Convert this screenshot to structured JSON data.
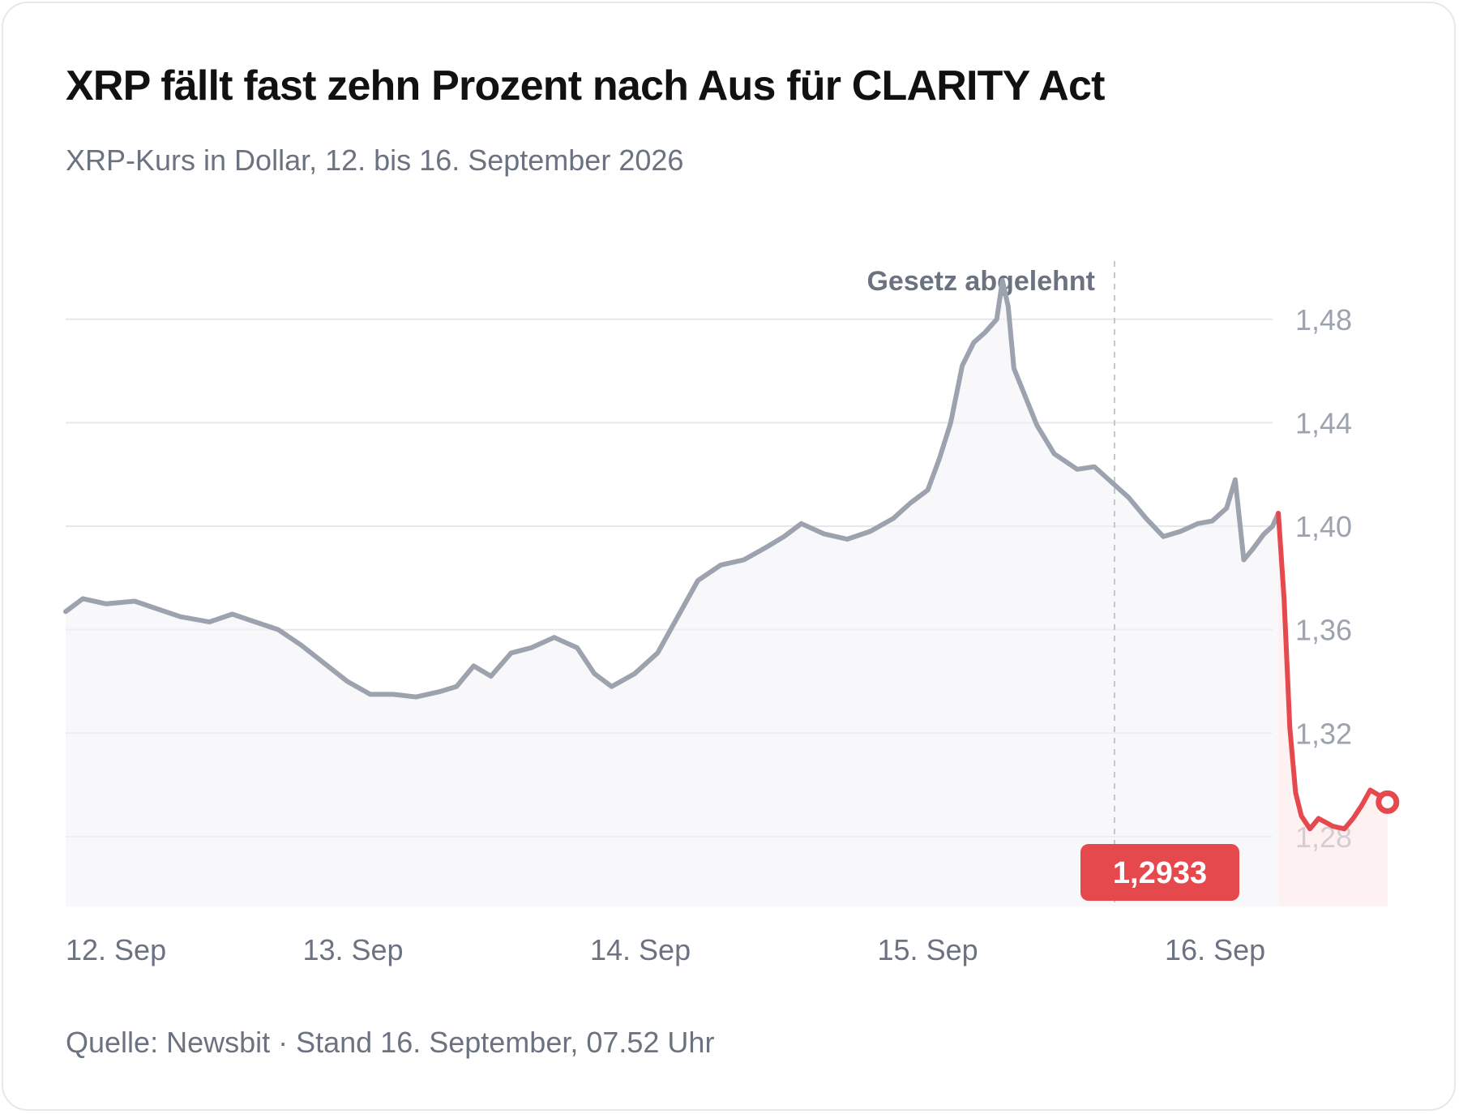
{
  "header": {
    "title": "XRP fällt fast zehn Prozent nach Aus für CLARITY Act",
    "subtitle": "XRP-Kurs in Dollar, 12. bis 16. September 2026"
  },
  "footer": {
    "source": "Quelle: Newsbit · Stand 16. September, 07.52 Uhr"
  },
  "colors": {
    "before_line": "#9ca3af",
    "after_line": "#e5484d",
    "grid": "#e5e7eb",
    "annotation": "#6b7280",
    "tick": "#9ca3af",
    "x_tick": "#6b7280"
  },
  "chart_data": {
    "type": "line",
    "title": "XRP fällt fast zehn Prozent nach Aus für CLARITY Act",
    "subtitle": "XRP-Kurs in Dollar, 12. bis 16. September 2026",
    "xlabel": "",
    "ylabel": "",
    "x_range": [
      0,
      4.2
    ],
    "ylim": [
      1.253,
      1.5
    ],
    "y_ticks": [
      1.28,
      1.32,
      1.36,
      1.4,
      1.44,
      1.48
    ],
    "y_tick_labels": [
      "1,28",
      "1,32",
      "1,36",
      "1,40",
      "1,44",
      "1,48"
    ],
    "x_ticks": [
      {
        "x": 0,
        "label": "12. Sep"
      },
      {
        "x": 1,
        "label": "13. Sep"
      },
      {
        "x": 2,
        "label": "14. Sep"
      },
      {
        "x": 3,
        "label": "15. Sep"
      },
      {
        "x": 4,
        "label": "16. Sep"
      }
    ],
    "grid": true,
    "annotation": {
      "x": 3.65,
      "label": "Gesetz abgelehnt"
    },
    "last_value_label": "1,2933",
    "series": [
      {
        "segment": "before",
        "points": [
          [
            0.0,
            1.367
          ],
          [
            0.06,
            1.372
          ],
          [
            0.14,
            1.37
          ],
          [
            0.24,
            1.371
          ],
          [
            0.32,
            1.368
          ],
          [
            0.4,
            1.365
          ],
          [
            0.5,
            1.363
          ],
          [
            0.58,
            1.366
          ],
          [
            0.66,
            1.363
          ],
          [
            0.74,
            1.36
          ],
          [
            0.82,
            1.354
          ],
          [
            0.9,
            1.347
          ],
          [
            0.98,
            1.34
          ],
          [
            1.06,
            1.335
          ],
          [
            1.14,
            1.335
          ],
          [
            1.22,
            1.334
          ],
          [
            1.3,
            1.336
          ],
          [
            1.36,
            1.338
          ],
          [
            1.42,
            1.346
          ],
          [
            1.48,
            1.342
          ],
          [
            1.55,
            1.351
          ],
          [
            1.62,
            1.353
          ],
          [
            1.7,
            1.357
          ],
          [
            1.78,
            1.353
          ],
          [
            1.84,
            1.343
          ],
          [
            1.9,
            1.338
          ],
          [
            1.98,
            1.343
          ],
          [
            2.06,
            1.351
          ],
          [
            2.12,
            1.363
          ],
          [
            2.2,
            1.379
          ],
          [
            2.28,
            1.385
          ],
          [
            2.36,
            1.387
          ],
          [
            2.44,
            1.392
          ],
          [
            2.5,
            1.396
          ],
          [
            2.56,
            1.401
          ],
          [
            2.64,
            1.397
          ],
          [
            2.72,
            1.395
          ],
          [
            2.8,
            1.398
          ],
          [
            2.88,
            1.403
          ],
          [
            2.94,
            1.409
          ],
          [
            3.0,
            1.414
          ],
          [
            3.04,
            1.426
          ],
          [
            3.08,
            1.44
          ],
          [
            3.12,
            1.462
          ],
          [
            3.16,
            1.471
          ],
          [
            3.2,
            1.475
          ],
          [
            3.24,
            1.48
          ],
          [
            3.26,
            1.495
          ],
          [
            3.28,
            1.485
          ],
          [
            3.3,
            1.461
          ],
          [
            3.34,
            1.45
          ],
          [
            3.38,
            1.439
          ],
          [
            3.44,
            1.428
          ],
          [
            3.52,
            1.422
          ],
          [
            3.58,
            1.423
          ],
          [
            3.64,
            1.417
          ],
          [
            3.7,
            1.411
          ],
          [
            3.76,
            1.403
          ],
          [
            3.82,
            1.396
          ],
          [
            3.88,
            1.398
          ],
          [
            3.94,
            1.401
          ],
          [
            3.99,
            1.402
          ],
          [
            4.04,
            1.407
          ],
          [
            4.07,
            1.418
          ],
          [
            4.1,
            1.387
          ],
          [
            4.13,
            1.391
          ],
          [
            4.17,
            1.397
          ],
          [
            4.2,
            1.4
          ],
          [
            4.22,
            1.405
          ]
        ]
      },
      {
        "segment": "after",
        "points": [
          [
            4.22,
            1.405
          ],
          [
            4.24,
            1.372
          ],
          [
            4.26,
            1.322
          ],
          [
            4.28,
            1.297
          ],
          [
            4.3,
            1.288
          ],
          [
            4.33,
            1.283
          ],
          [
            4.36,
            1.287
          ],
          [
            4.41,
            1.284
          ],
          [
            4.45,
            1.283
          ],
          [
            4.48,
            1.287
          ],
          [
            4.51,
            1.292
          ],
          [
            4.54,
            1.298
          ],
          [
            4.57,
            1.296
          ],
          [
            4.6,
            1.2933
          ]
        ]
      }
    ]
  }
}
